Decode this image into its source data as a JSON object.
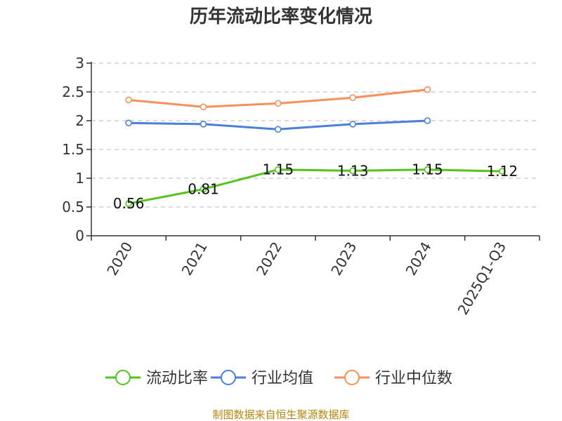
{
  "chart_data": {
    "type": "line",
    "title": "历年流动比率变化情况",
    "categories": [
      "2020",
      "2021",
      "2022",
      "2023",
      "2024",
      "2025Q1-Q3"
    ],
    "series": [
      {
        "name": "流动比率",
        "color": "#52c41a",
        "values": [
          0.56,
          0.81,
          1.15,
          1.13,
          1.15,
          1.12
        ],
        "labels": [
          "0.56",
          "0.81",
          "1.15",
          "1.13",
          "1.15",
          "1.12"
        ]
      },
      {
        "name": "行业均值",
        "color": "#4a7fdc",
        "values": [
          1.96,
          1.94,
          1.85,
          1.94,
          2.0,
          null
        ]
      },
      {
        "name": "行业中位数",
        "color": "#f7905a",
        "values": [
          2.36,
          2.24,
          2.3,
          2.4,
          2.54,
          null
        ]
      }
    ],
    "ylim": [
      0,
      3
    ],
    "yticks": [
      "0",
      "0.5",
      "1",
      "1.5",
      "2",
      "2.5",
      "3"
    ],
    "grid": true,
    "legend": "bottom",
    "source": "制图数据来自恒生聚源数据库"
  }
}
